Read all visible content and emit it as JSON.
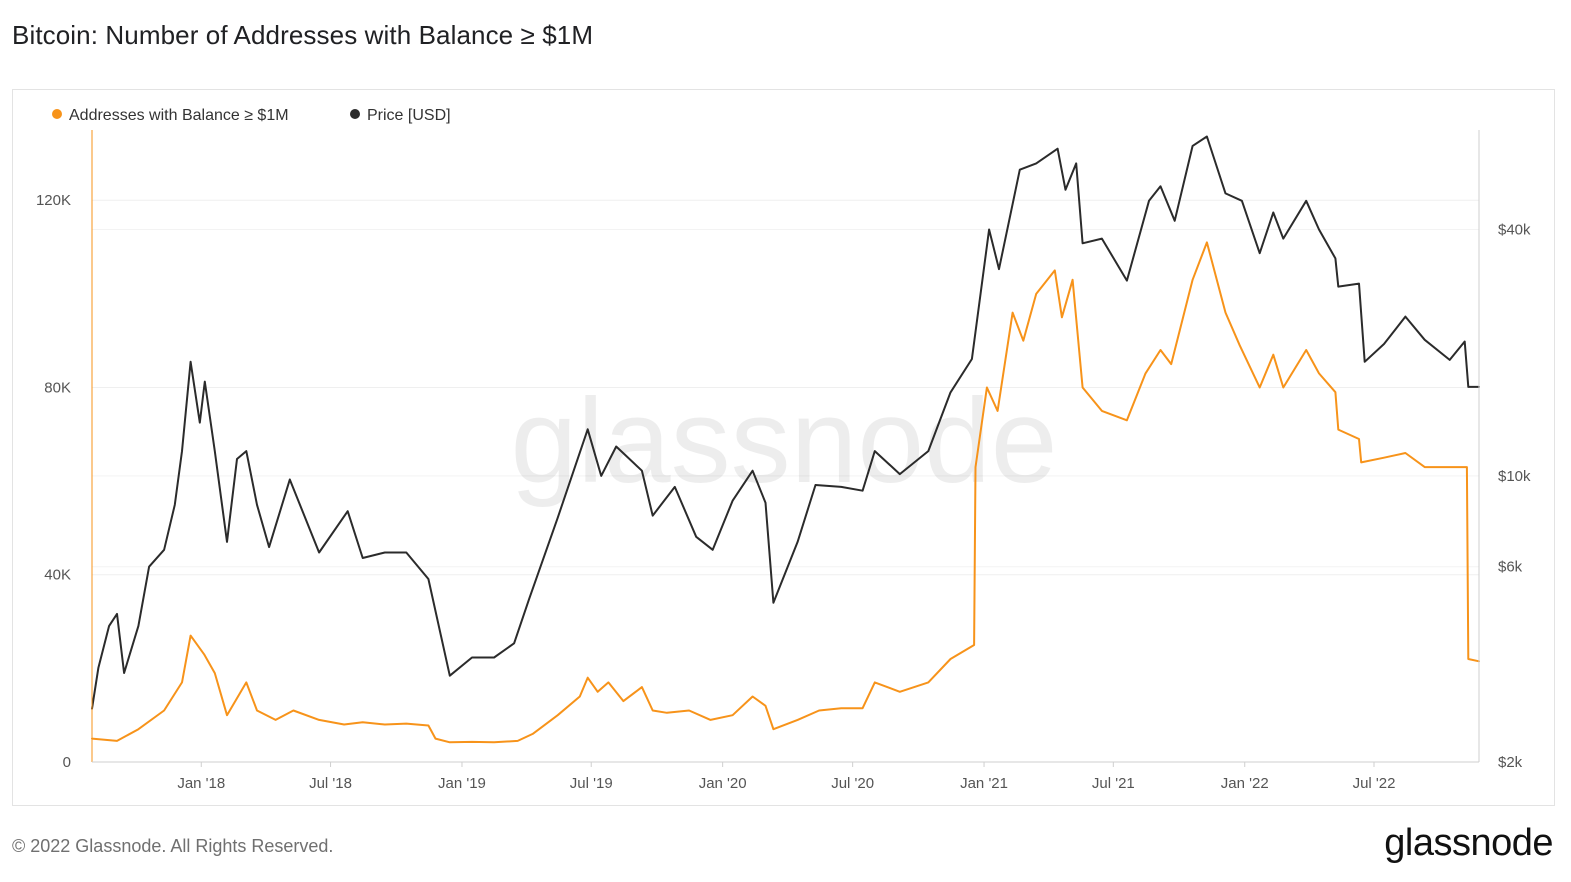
{
  "title": "Bitcoin: Number of Addresses with Balance ≥ $1M",
  "footer": {
    "copyright": "© 2022 Glassnode. All Rights Reserved.",
    "logo": "glassnode"
  },
  "watermark": "glassnode",
  "chart_data": {
    "type": "line",
    "title": "Bitcoin: Number of Addresses with Balance ≥ $1M",
    "legend": {
      "placement": "top-left",
      "entries": [
        {
          "label": "Addresses with Balance ≥ $1M",
          "color": "#f7931a"
        },
        {
          "label": "Price [USD]",
          "color": "#2b2b2b"
        }
      ]
    },
    "x_axis": {
      "type": "date",
      "range": [
        "2017-08-01",
        "2022-11-25"
      ],
      "ticks": [
        {
          "date": "2018-01-01",
          "label": "Jan '18"
        },
        {
          "date": "2018-07-01",
          "label": "Jul '18"
        },
        {
          "date": "2019-01-01",
          "label": "Jan '19"
        },
        {
          "date": "2019-07-01",
          "label": "Jul '19"
        },
        {
          "date": "2020-01-01",
          "label": "Jan '20"
        },
        {
          "date": "2020-07-01",
          "label": "Jul '20"
        },
        {
          "date": "2021-01-01",
          "label": "Jan '21"
        },
        {
          "date": "2021-07-01",
          "label": "Jul '21"
        },
        {
          "date": "2022-01-01",
          "label": "Jan '22"
        },
        {
          "date": "2022-07-01",
          "label": "Jul '22"
        }
      ]
    },
    "y_left": {
      "scale": "linear",
      "range": [
        0,
        135000
      ],
      "ticks": [
        {
          "value": 0,
          "label": "0"
        },
        {
          "value": 40000,
          "label": "40K"
        },
        {
          "value": 80000,
          "label": "80K"
        },
        {
          "value": 120000,
          "label": "120K"
        }
      ]
    },
    "y_right": {
      "scale": "log",
      "range": [
        2000,
        70000
      ],
      "ticks": [
        {
          "value": 2000,
          "label": "$2k"
        },
        {
          "value": 6000,
          "label": "$6k"
        },
        {
          "value": 10000,
          "label": "$10k"
        },
        {
          "value": 40000,
          "label": "$40k"
        }
      ]
    },
    "grid": true,
    "series": [
      {
        "name": "Addresses with Balance ≥ $1M",
        "axis": "left",
        "color": "#f7931a",
        "points": [
          [
            "2017-08-01",
            5000
          ],
          [
            "2017-09-05",
            4500
          ],
          [
            "2017-10-05",
            7000
          ],
          [
            "2017-11-10",
            11000
          ],
          [
            "2017-12-05",
            17000
          ],
          [
            "2017-12-17",
            27000
          ],
          [
            "2018-01-05",
            23000
          ],
          [
            "2018-01-20",
            19000
          ],
          [
            "2018-02-06",
            10000
          ],
          [
            "2018-03-05",
            17000
          ],
          [
            "2018-03-20",
            11000
          ],
          [
            "2018-04-15",
            9000
          ],
          [
            "2018-05-10",
            11000
          ],
          [
            "2018-06-15",
            9000
          ],
          [
            "2018-07-20",
            8000
          ],
          [
            "2018-08-15",
            8500
          ],
          [
            "2018-09-15",
            8000
          ],
          [
            "2018-10-15",
            8200
          ],
          [
            "2018-11-15",
            7800
          ],
          [
            "2018-11-25",
            5000
          ],
          [
            "2018-12-15",
            4200
          ],
          [
            "2019-01-15",
            4300
          ],
          [
            "2019-02-15",
            4200
          ],
          [
            "2019-03-20",
            4500
          ],
          [
            "2019-04-10",
            6000
          ],
          [
            "2019-05-15",
            10000
          ],
          [
            "2019-06-15",
            14000
          ],
          [
            "2019-06-26",
            18000
          ],
          [
            "2019-07-10",
            15000
          ],
          [
            "2019-07-25",
            17000
          ],
          [
            "2019-08-15",
            13000
          ],
          [
            "2019-09-10",
            16000
          ],
          [
            "2019-09-25",
            11000
          ],
          [
            "2019-10-15",
            10500
          ],
          [
            "2019-11-15",
            11000
          ],
          [
            "2019-12-15",
            9000
          ],
          [
            "2020-01-15",
            10000
          ],
          [
            "2020-02-12",
            14000
          ],
          [
            "2020-03-01",
            12000
          ],
          [
            "2020-03-12",
            7000
          ],
          [
            "2020-04-15",
            9000
          ],
          [
            "2020-05-15",
            11000
          ],
          [
            "2020-06-15",
            11500
          ],
          [
            "2020-07-15",
            11500
          ],
          [
            "2020-08-01",
            17000
          ],
          [
            "2020-09-05",
            15000
          ],
          [
            "2020-10-15",
            17000
          ],
          [
            "2020-11-15",
            22000
          ],
          [
            "2020-12-18",
            25000
          ],
          [
            "2020-12-20",
            63000
          ],
          [
            "2021-01-05",
            80000
          ],
          [
            "2021-01-20",
            75000
          ],
          [
            "2021-02-10",
            96000
          ],
          [
            "2021-02-25",
            90000
          ],
          [
            "2021-03-15",
            100000
          ],
          [
            "2021-04-10",
            105000
          ],
          [
            "2021-04-20",
            95000
          ],
          [
            "2021-05-05",
            103000
          ],
          [
            "2021-05-19",
            80000
          ],
          [
            "2021-06-15",
            75000
          ],
          [
            "2021-07-20",
            73000
          ],
          [
            "2021-08-15",
            83000
          ],
          [
            "2021-09-05",
            88000
          ],
          [
            "2021-09-20",
            85000
          ],
          [
            "2021-10-20",
            103000
          ],
          [
            "2021-11-09",
            111000
          ],
          [
            "2021-12-05",
            96000
          ],
          [
            "2021-12-25",
            89000
          ],
          [
            "2022-01-22",
            80000
          ],
          [
            "2022-02-10",
            87000
          ],
          [
            "2022-02-24",
            80000
          ],
          [
            "2022-03-28",
            88000
          ],
          [
            "2022-04-15",
            83000
          ],
          [
            "2022-05-08",
            79000
          ],
          [
            "2022-05-12",
            71000
          ],
          [
            "2022-06-10",
            69000
          ],
          [
            "2022-06-13",
            64000
          ],
          [
            "2022-07-15",
            65000
          ],
          [
            "2022-08-14",
            66000
          ],
          [
            "2022-09-10",
            63000
          ],
          [
            "2022-10-15",
            63000
          ],
          [
            "2022-11-08",
            63000
          ],
          [
            "2022-11-10",
            22000
          ],
          [
            "2022-11-25",
            21500
          ]
        ]
      },
      {
        "name": "Price [USD]",
        "axis": "right",
        "color": "#2b2b2b",
        "points": [
          [
            "2017-08-01",
            2700
          ],
          [
            "2017-08-10",
            3400
          ],
          [
            "2017-08-25",
            4300
          ],
          [
            "2017-09-05",
            4600
          ],
          [
            "2017-09-15",
            3300
          ],
          [
            "2017-10-05",
            4300
          ],
          [
            "2017-10-20",
            6000
          ],
          [
            "2017-11-10",
            6600
          ],
          [
            "2017-11-25",
            8500
          ],
          [
            "2017-12-05",
            11500
          ],
          [
            "2017-12-17",
            19000
          ],
          [
            "2017-12-30",
            13500
          ],
          [
            "2018-01-06",
            17000
          ],
          [
            "2018-01-20",
            11500
          ],
          [
            "2018-02-06",
            6900
          ],
          [
            "2018-02-20",
            11000
          ],
          [
            "2018-03-05",
            11500
          ],
          [
            "2018-03-20",
            8500
          ],
          [
            "2018-04-06",
            6700
          ],
          [
            "2018-05-05",
            9800
          ],
          [
            "2018-06-15",
            6500
          ],
          [
            "2018-07-25",
            8200
          ],
          [
            "2018-08-15",
            6300
          ],
          [
            "2018-09-15",
            6500
          ],
          [
            "2018-10-15",
            6500
          ],
          [
            "2018-11-15",
            5600
          ],
          [
            "2018-12-15",
            3250
          ],
          [
            "2019-01-15",
            3600
          ],
          [
            "2019-02-15",
            3600
          ],
          [
            "2019-03-15",
            3900
          ],
          [
            "2019-04-05",
            5000
          ],
          [
            "2019-05-15",
            7900
          ],
          [
            "2019-06-26",
            13000
          ],
          [
            "2019-07-15",
            10000
          ],
          [
            "2019-08-05",
            11800
          ],
          [
            "2019-09-10",
            10300
          ],
          [
            "2019-09-25",
            8000
          ],
          [
            "2019-10-26",
            9400
          ],
          [
            "2019-11-25",
            7100
          ],
          [
            "2019-12-18",
            6600
          ],
          [
            "2020-01-15",
            8700
          ],
          [
            "2020-02-12",
            10300
          ],
          [
            "2020-03-01",
            8600
          ],
          [
            "2020-03-12",
            4900
          ],
          [
            "2020-04-15",
            6900
          ],
          [
            "2020-05-10",
            9500
          ],
          [
            "2020-06-15",
            9400
          ],
          [
            "2020-07-15",
            9200
          ],
          [
            "2020-08-01",
            11500
          ],
          [
            "2020-09-05",
            10100
          ],
          [
            "2020-10-15",
            11500
          ],
          [
            "2020-11-15",
            16000
          ],
          [
            "2020-12-15",
            19300
          ],
          [
            "2021-01-08",
            40000
          ],
          [
            "2021-01-22",
            32000
          ],
          [
            "2021-02-20",
            56000
          ],
          [
            "2021-03-15",
            58000
          ],
          [
            "2021-04-14",
            63000
          ],
          [
            "2021-04-25",
            50000
          ],
          [
            "2021-05-10",
            58000
          ],
          [
            "2021-05-19",
            37000
          ],
          [
            "2021-06-15",
            38000
          ],
          [
            "2021-07-20",
            30000
          ],
          [
            "2021-08-20",
            47000
          ],
          [
            "2021-09-05",
            51000
          ],
          [
            "2021-09-25",
            42000
          ],
          [
            "2021-10-20",
            64000
          ],
          [
            "2021-11-09",
            67500
          ],
          [
            "2021-12-05",
            49000
          ],
          [
            "2021-12-28",
            47000
          ],
          [
            "2022-01-22",
            35000
          ],
          [
            "2022-02-10",
            44000
          ],
          [
            "2022-02-24",
            38000
          ],
          [
            "2022-03-28",
            47000
          ],
          [
            "2022-04-15",
            40000
          ],
          [
            "2022-05-08",
            34000
          ],
          [
            "2022-05-12",
            29000
          ],
          [
            "2022-06-10",
            29500
          ],
          [
            "2022-06-18",
            19000
          ],
          [
            "2022-07-15",
            21000
          ],
          [
            "2022-08-14",
            24500
          ],
          [
            "2022-09-10",
            21500
          ],
          [
            "2022-10-15",
            19200
          ],
          [
            "2022-11-05",
            21300
          ],
          [
            "2022-11-10",
            16500
          ],
          [
            "2022-11-25",
            16500
          ]
        ]
      }
    ]
  }
}
